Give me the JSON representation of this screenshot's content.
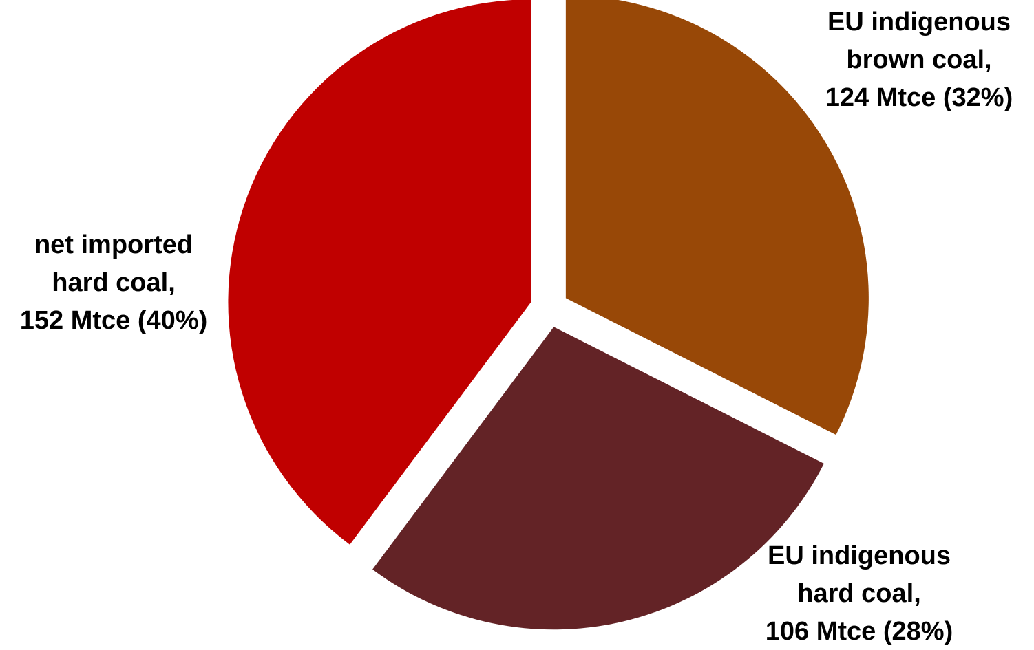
{
  "chart_data": {
    "type": "pie",
    "unit": "Mtce",
    "slices": [
      {
        "category": "EU indigenous brown coal",
        "value": 124,
        "percent": 32,
        "color": "#984807",
        "label_lines": [
          "EU indigenous",
          "brown coal,",
          "124 Mtce (32%)"
        ]
      },
      {
        "category": "EU indigenous hard coal",
        "value": 106,
        "percent": 28,
        "color": "#632326",
        "label_lines": [
          "EU indigenous",
          "hard coal,",
          "106 Mtce (28%)"
        ]
      },
      {
        "category": "net imported hard coal",
        "value": 152,
        "percent": 40,
        "color": "#C00000",
        "label_lines": [
          "net imported",
          "hard coal,",
          "152 Mtce (40%)"
        ]
      }
    ],
    "legend": "none",
    "exploded": true
  }
}
